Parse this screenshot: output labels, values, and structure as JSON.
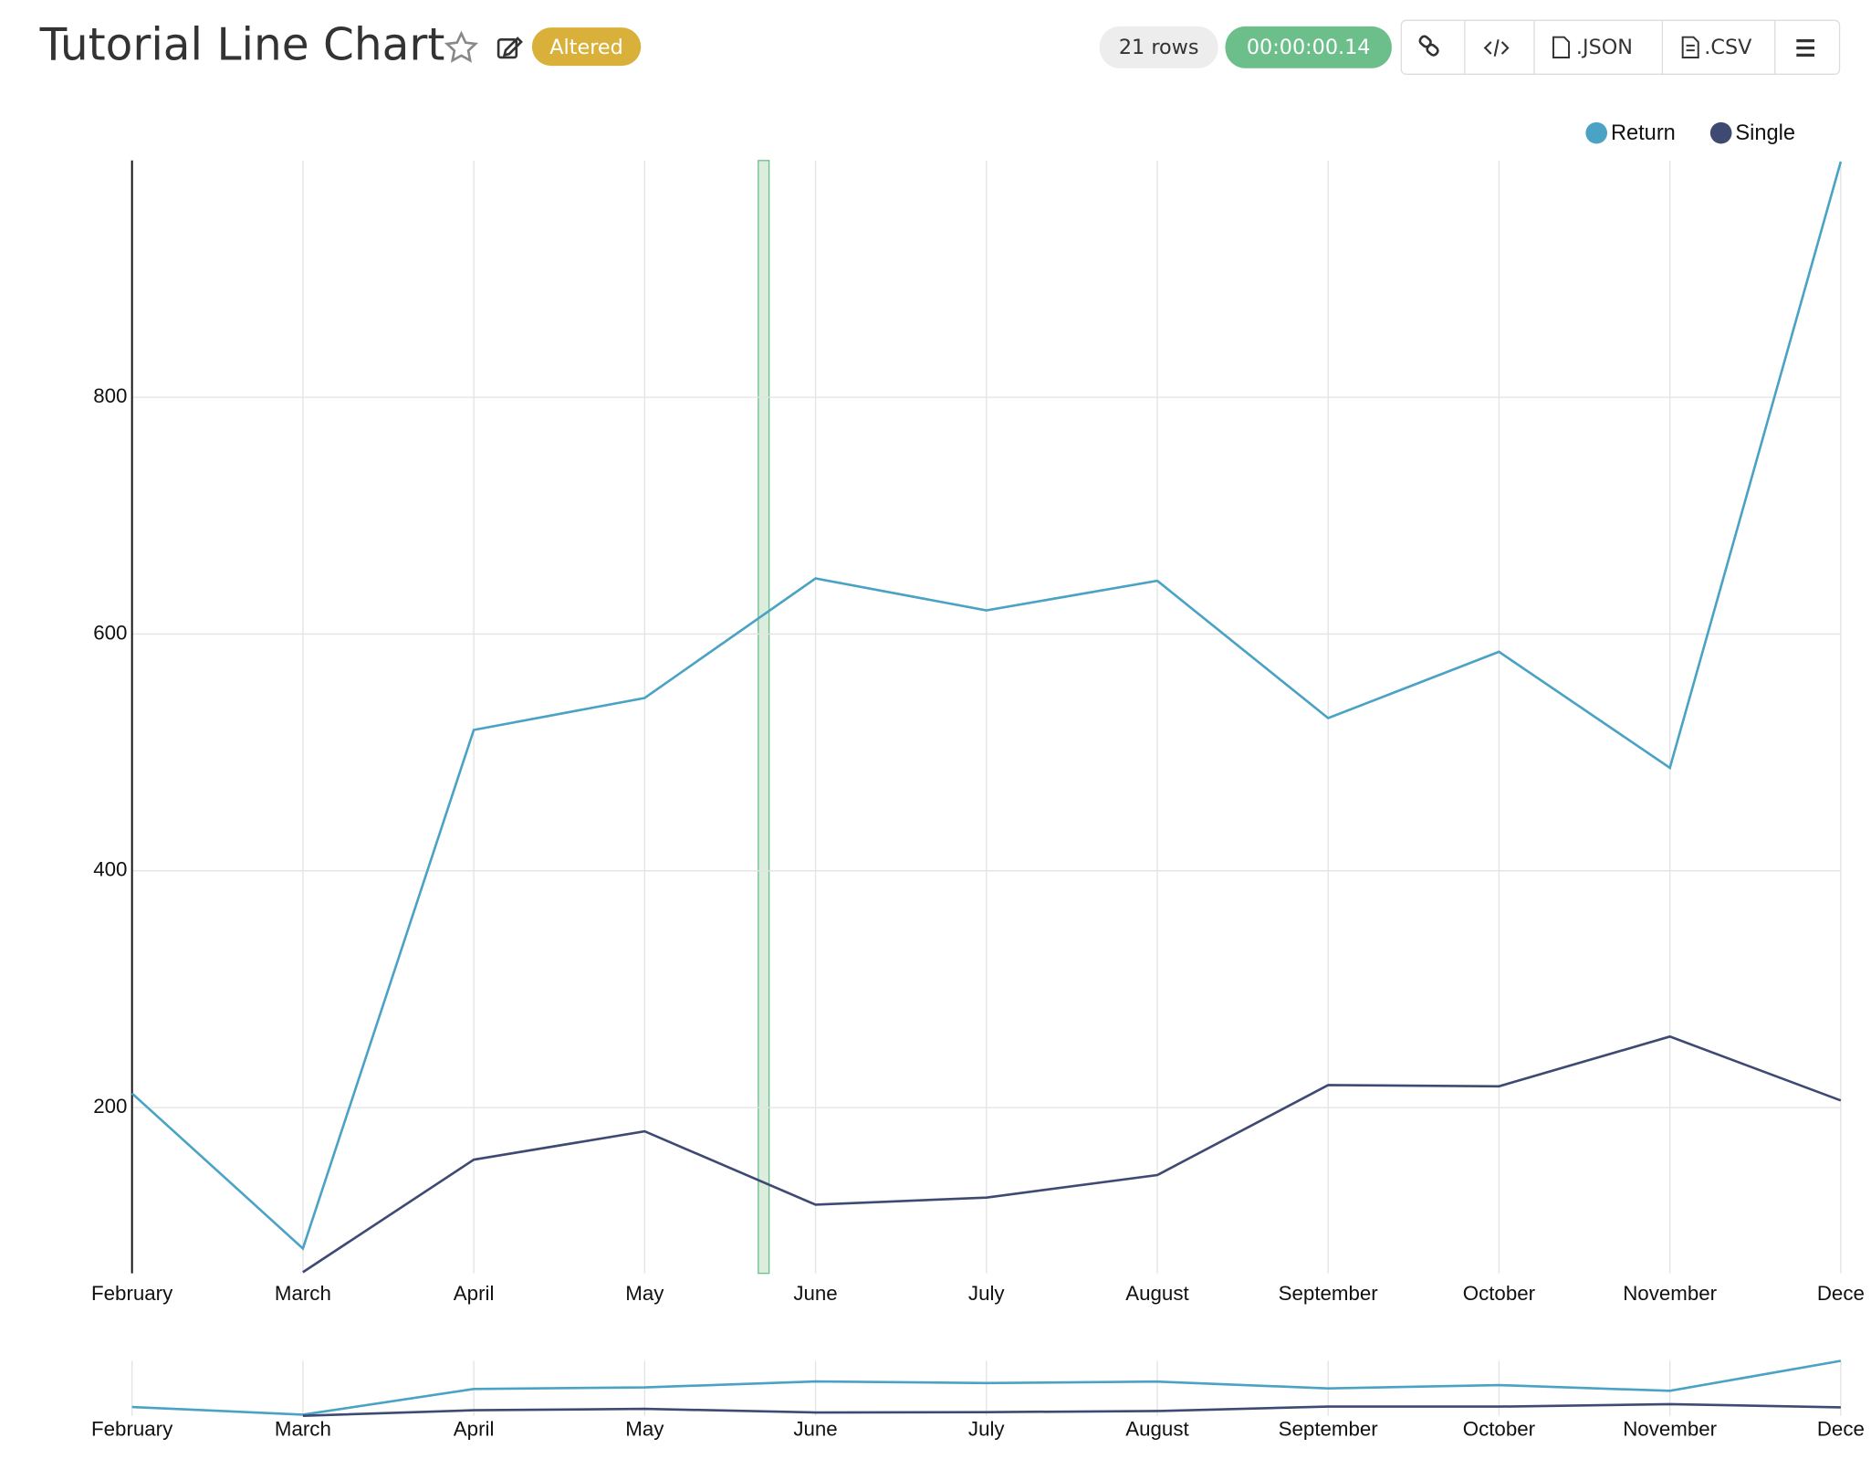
{
  "header": {
    "title": "Tutorial Line Chart",
    "badge": "Altered",
    "rows": "21 rows",
    "time": "00:00:00.14",
    "buttons": [
      ".JSON",
      ".CSV"
    ]
  },
  "chart_data": {
    "type": "line",
    "categories": [
      "February",
      "March",
      "April",
      "May",
      "June",
      "July",
      "August",
      "September",
      "October",
      "November",
      "Dece"
    ],
    "series": [
      {
        "name": "Return",
        "color": "#4aa3c4",
        "values": [
          212,
          81,
          519,
          546,
          647,
          620,
          645,
          529,
          585,
          487,
          999
        ]
      },
      {
        "name": "Single",
        "color": "#3f4a73",
        "values": [
          null,
          61,
          156,
          180,
          118,
          124,
          143,
          219,
          218,
          260,
          206
        ]
      }
    ],
    "ylim": [
      60,
      1000
    ],
    "yticks": [
      200,
      400,
      600,
      800
    ],
    "grid": true,
    "legend": "top-right"
  }
}
